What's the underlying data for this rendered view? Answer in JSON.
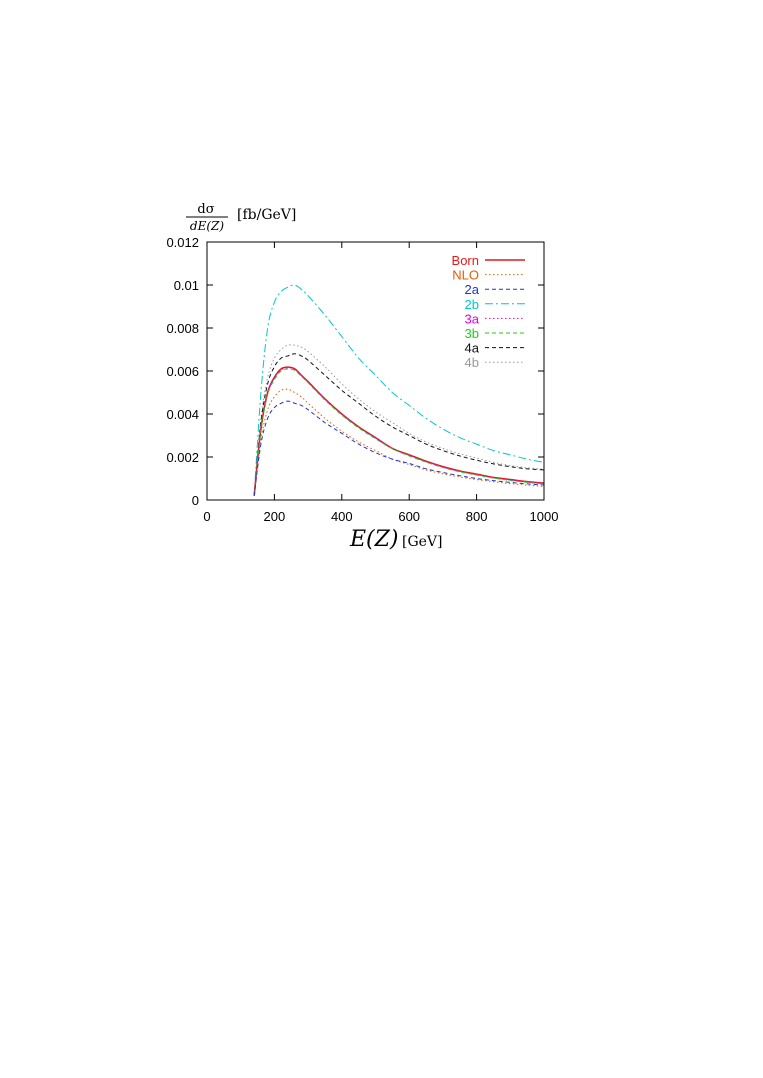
{
  "chart_data": {
    "type": "line",
    "title": "",
    "ylabel": {
      "numerator": "dσ",
      "denominator": "dE(Z)",
      "unit": "[fb/GeV]"
    },
    "xlabel": {
      "symbol": "E(Z)",
      "unit": "[GeV]"
    },
    "xlim": [
      0,
      1000
    ],
    "ylim": [
      0,
      0.012
    ],
    "xticks": [
      "0",
      "200",
      "400",
      "600",
      "800",
      "1000"
    ],
    "yticks": [
      "0",
      "0.002",
      "0.004",
      "0.006",
      "0.008",
      "0.01",
      "0.012"
    ],
    "grid": false,
    "legend_position": "top-right",
    "x": [
      140,
      160,
      180,
      200,
      220,
      240,
      260,
      280,
      300,
      350,
      400,
      450,
      500,
      550,
      600,
      650,
      700,
      750,
      800,
      850,
      900,
      950,
      1000
    ],
    "series": [
      {
        "name": "Born",
        "color": "#e41a1c",
        "dash": "solid",
        "values": [
          0.0002,
          0.0033,
          0.005,
          0.0057,
          0.0061,
          0.00618,
          0.0061,
          0.0058,
          0.0055,
          0.0047,
          0.004,
          0.0034,
          0.0029,
          0.0024,
          0.0021,
          0.0018,
          0.00155,
          0.00135,
          0.0012,
          0.00105,
          0.00095,
          0.00085,
          0.00078
        ]
      },
      {
        "name": "NLO",
        "color": "#e65c00",
        "dash": "dotted",
        "values": [
          0.0002,
          0.0028,
          0.0042,
          0.0048,
          0.0051,
          0.00515,
          0.005,
          0.0048,
          0.0045,
          0.0038,
          0.0032,
          0.0027,
          0.0023,
          0.0019,
          0.00165,
          0.0014,
          0.00122,
          0.00107,
          0.00095,
          0.00085,
          0.00076,
          0.00069,
          0.00063
        ]
      },
      {
        "name": "2a",
        "color": "#2233cc",
        "dash": "dashed",
        "values": [
          0.0002,
          0.0026,
          0.0038,
          0.0043,
          0.0045,
          0.0046,
          0.0045,
          0.0044,
          0.0042,
          0.0036,
          0.0031,
          0.0026,
          0.0022,
          0.0019,
          0.0017,
          0.00145,
          0.00128,
          0.00113,
          0.001,
          0.0009,
          0.00082,
          0.00075,
          0.0007
        ]
      },
      {
        "name": "2b",
        "color": "#00c8c8",
        "dash": "dashdot",
        "values": [
          0.0002,
          0.005,
          0.008,
          0.0092,
          0.0097,
          0.0099,
          0.01,
          0.0098,
          0.0095,
          0.0086,
          0.0076,
          0.0066,
          0.0058,
          0.005,
          0.0044,
          0.0038,
          0.0033,
          0.0029,
          0.0026,
          0.0023,
          0.0021,
          0.0019,
          0.00175
        ]
      },
      {
        "name": "3a",
        "color": "#e000e0",
        "dash": "dotted",
        "values": [
          0.0002,
          0.0033,
          0.005,
          0.0057,
          0.00605,
          0.00615,
          0.00608,
          0.0058,
          0.0055,
          0.0047,
          0.004,
          0.0034,
          0.0029,
          0.0024,
          0.00208,
          0.00178,
          0.00153,
          0.00133,
          0.00118,
          0.00104,
          0.00093,
          0.00084,
          0.00077
        ]
      },
      {
        "name": "3b",
        "color": "#22cc22",
        "dash": "dashed",
        "values": [
          0.0002,
          0.0032,
          0.0049,
          0.0056,
          0.006,
          0.0061,
          0.00603,
          0.00575,
          0.00545,
          0.00465,
          0.00395,
          0.00335,
          0.00285,
          0.00238,
          0.00205,
          0.00176,
          0.00151,
          0.00131,
          0.00116,
          0.00102,
          0.00091,
          0.00082,
          0.00075
        ]
      },
      {
        "name": "4a",
        "color": "#111111",
        "dash": "dashed",
        "values": [
          0.0002,
          0.0036,
          0.0054,
          0.0062,
          0.0066,
          0.0067,
          0.0068,
          0.0067,
          0.0065,
          0.0058,
          0.0051,
          0.0045,
          0.0039,
          0.0034,
          0.003,
          0.0026,
          0.0023,
          0.00205,
          0.00185,
          0.00168,
          0.00155,
          0.00145,
          0.0014
        ]
      },
      {
        "name": "4b",
        "color": "#999999",
        "dash": "dotted",
        "values": [
          0.0002,
          0.0038,
          0.0057,
          0.0066,
          0.007,
          0.0072,
          0.0072,
          0.0071,
          0.0069,
          0.0062,
          0.0054,
          0.0047,
          0.0041,
          0.0036,
          0.0031,
          0.0027,
          0.0024,
          0.00215,
          0.00195,
          0.00175,
          0.0016,
          0.0015,
          0.00143
        ]
      }
    ]
  }
}
